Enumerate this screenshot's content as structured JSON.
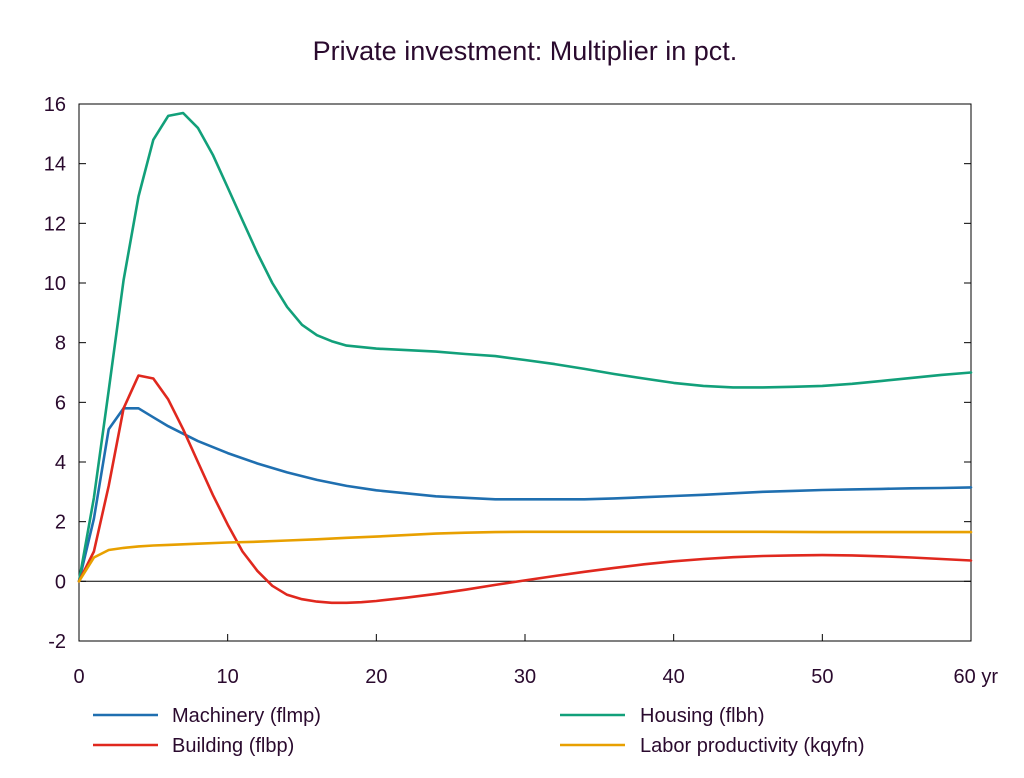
{
  "chart_data": {
    "type": "line",
    "title": "Private investment: Multiplier in pct.",
    "xlabel": "",
    "ylabel": "",
    "xlim": [
      0,
      60
    ],
    "ylim": [
      -2,
      16
    ],
    "x_ticks": [
      0,
      10,
      20,
      30,
      40,
      50,
      60
    ],
    "x_tick_labels": [
      "0",
      "10",
      "20",
      "30",
      "40",
      "50",
      "60 yr"
    ],
    "y_ticks": [
      -2,
      0,
      2,
      4,
      6,
      8,
      10,
      12,
      14,
      16
    ],
    "y_tick_labels": [
      "-2",
      "0",
      "2",
      "4",
      "6",
      "8",
      "10",
      "12",
      "14",
      "16"
    ],
    "grid": false,
    "zero_line": true,
    "legend_position": "bottom",
    "series": [
      {
        "name": "Machinery (flmp)",
        "color": "#1f6fb0",
        "x": [
          0,
          1,
          2,
          3,
          4,
          5,
          6,
          7,
          8,
          10,
          12,
          14,
          16,
          18,
          20,
          22,
          24,
          26,
          28,
          30,
          32,
          34,
          36,
          38,
          40,
          42,
          44,
          46,
          48,
          50,
          52,
          54,
          56,
          58,
          60
        ],
        "y": [
          0,
          2.1,
          5.1,
          5.8,
          5.8,
          5.5,
          5.2,
          4.95,
          4.7,
          4.3,
          3.95,
          3.65,
          3.4,
          3.2,
          3.05,
          2.95,
          2.85,
          2.8,
          2.75,
          2.75,
          2.75,
          2.75,
          2.78,
          2.82,
          2.86,
          2.9,
          2.95,
          3.0,
          3.03,
          3.06,
          3.08,
          3.1,
          3.12,
          3.13,
          3.15
        ]
      },
      {
        "name": "Housing (flbh)",
        "color": "#12a07a",
        "x": [
          0,
          1,
          2,
          3,
          4,
          5,
          6,
          7,
          8,
          9,
          10,
          11,
          12,
          13,
          14,
          15,
          16,
          17,
          18,
          20,
          22,
          24,
          26,
          28,
          30,
          32,
          34,
          36,
          38,
          40,
          42,
          44,
          46,
          48,
          50,
          52,
          54,
          56,
          58,
          60
        ],
        "y": [
          0,
          2.8,
          6.4,
          10.1,
          12.9,
          14.8,
          15.6,
          15.7,
          15.2,
          14.3,
          13.2,
          12.1,
          11.0,
          10.0,
          9.2,
          8.6,
          8.25,
          8.05,
          7.9,
          7.8,
          7.75,
          7.7,
          7.62,
          7.55,
          7.42,
          7.28,
          7.12,
          6.95,
          6.8,
          6.65,
          6.55,
          6.5,
          6.5,
          6.52,
          6.55,
          6.62,
          6.72,
          6.82,
          6.92,
          7.0
        ]
      },
      {
        "name": "Building (flbp)",
        "color": "#e0281e",
        "x": [
          0,
          1,
          2,
          3,
          4,
          5,
          6,
          7,
          8,
          9,
          10,
          11,
          12,
          13,
          14,
          15,
          16,
          17,
          18,
          19,
          20,
          22,
          24,
          26,
          28,
          30,
          32,
          34,
          36,
          38,
          40,
          42,
          44,
          46,
          48,
          50,
          52,
          54,
          56,
          58,
          60
        ],
        "y": [
          0,
          1.0,
          3.2,
          5.8,
          6.9,
          6.8,
          6.1,
          5.1,
          4.0,
          2.9,
          1.9,
          1.0,
          0.35,
          -0.15,
          -0.45,
          -0.6,
          -0.68,
          -0.72,
          -0.72,
          -0.7,
          -0.66,
          -0.55,
          -0.42,
          -0.28,
          -0.12,
          0.03,
          0.18,
          0.32,
          0.45,
          0.57,
          0.67,
          0.75,
          0.81,
          0.85,
          0.87,
          0.88,
          0.87,
          0.84,
          0.8,
          0.75,
          0.7
        ]
      },
      {
        "name": "Labor productivity (kqyfn)",
        "color": "#e8a000",
        "x": [
          0,
          1,
          2,
          3,
          4,
          5,
          6,
          8,
          10,
          12,
          14,
          16,
          18,
          20,
          22,
          24,
          26,
          28,
          30,
          35,
          40,
          45,
          50,
          55,
          60
        ],
        "y": [
          0,
          0.8,
          1.05,
          1.12,
          1.17,
          1.2,
          1.22,
          1.26,
          1.3,
          1.33,
          1.37,
          1.41,
          1.46,
          1.5,
          1.55,
          1.6,
          1.63,
          1.65,
          1.66,
          1.66,
          1.66,
          1.66,
          1.65,
          1.65,
          1.65
        ]
      }
    ]
  }
}
